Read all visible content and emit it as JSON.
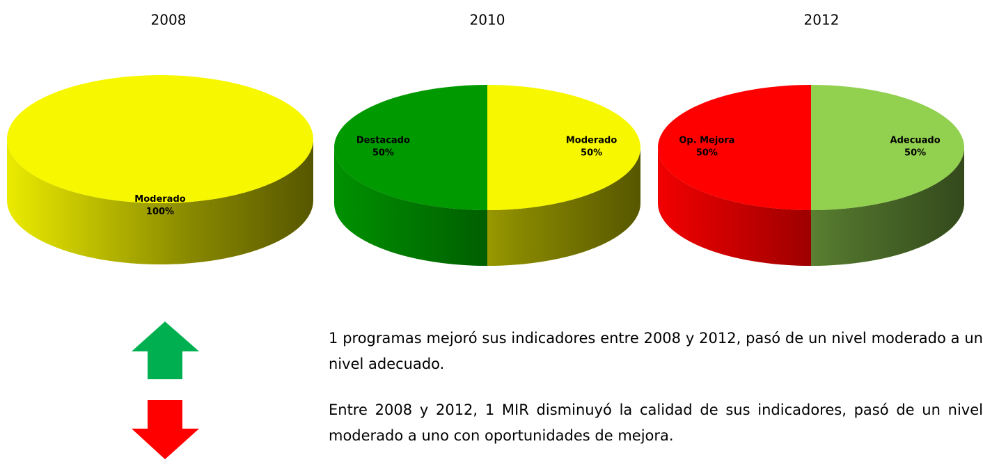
{
  "chart_data": [
    {
      "type": "pie",
      "title": "2008",
      "categories": [
        "Moderado"
      ],
      "values": [
        100
      ],
      "value_labels": [
        "100%"
      ],
      "colors": [
        "#f7f700"
      ]
    },
    {
      "type": "pie",
      "title": "2010",
      "categories": [
        "Moderado",
        "Destacado"
      ],
      "values": [
        50,
        50
      ],
      "value_labels": [
        "50%",
        "50%"
      ],
      "colors": [
        "#f7f700",
        "#009900"
      ]
    },
    {
      "type": "pie",
      "title": "2012",
      "categories": [
        "Adecuado",
        "Op. Mejora"
      ],
      "values": [
        50,
        50
      ],
      "value_labels": [
        "50%",
        "50%"
      ],
      "colors": [
        "#92d050",
        "#ff0000"
      ]
    }
  ],
  "notes": [
    "1 programas mejoró sus indicadores entre 2008 y 2012, pasó de un nivel moderado a un nivel adecuado.",
    "Entre 2008 y 2012, 1 MIR disminuyó la calidad de sus indicadores, pasó de un nivel moderado a uno con oportunidades de mejora."
  ]
}
